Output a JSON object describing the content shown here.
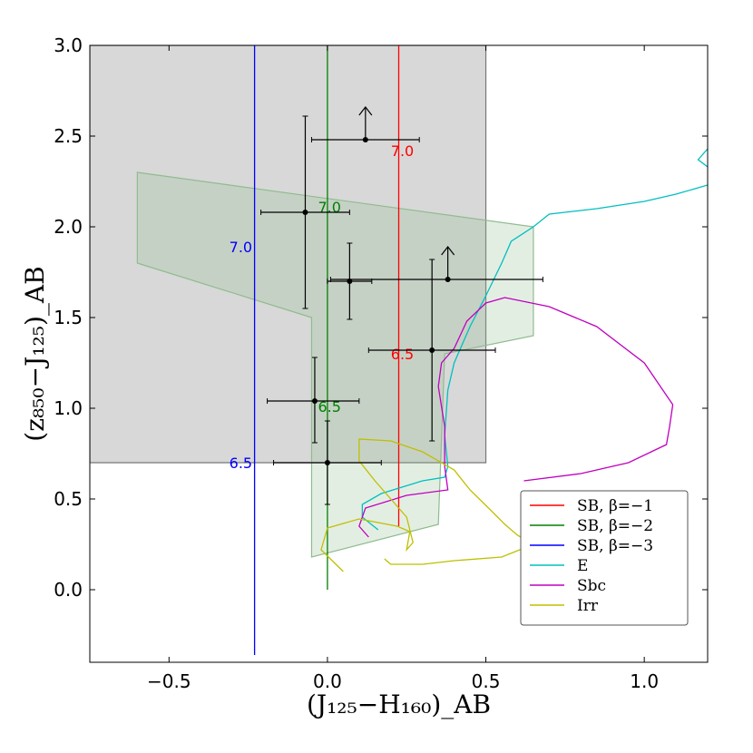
{
  "chart_data": {
    "type": "scatter",
    "xlabel": "(J₁₂₅−H₁₆₀)_AB",
    "ylabel": "(z₈₅₀−J₁₂₅)_AB",
    "xlim": [
      -0.75,
      1.2
    ],
    "ylim": [
      -0.4,
      3.0
    ],
    "x_ticks": [
      -0.5,
      0.0,
      0.5,
      1.0
    ],
    "y_ticks": [
      0.0,
      0.5,
      1.0,
      1.5,
      2.0,
      2.5,
      3.0
    ],
    "x_tick_labels": [
      "−0.5",
      "0.0",
      "0.5",
      "1.0"
    ],
    "y_tick_labels": [
      "0.0",
      "0.5",
      "1.0",
      "1.5",
      "2.0",
      "2.5",
      "3.0"
    ],
    "grid": false,
    "legend_position": "lower-right",
    "regions": [
      {
        "fill": "#a8a8a8",
        "opacity": 0.45,
        "stroke": "#777777",
        "points": [
          [
            -0.75,
            0.7
          ],
          [
            0.5,
            0.7
          ],
          [
            0.5,
            3.0
          ],
          [
            -0.75,
            3.0
          ]
        ]
      },
      {
        "fill": "#8fbc8f",
        "opacity": 0.25,
        "stroke": "#8fbc8f",
        "points": [
          [
            -0.6,
            2.3
          ],
          [
            0.65,
            2.0
          ],
          [
            0.65,
            1.4
          ],
          [
            0.37,
            1.3
          ],
          [
            0.35,
            0.36
          ],
          [
            -0.05,
            0.18
          ],
          [
            -0.05,
            1.5
          ],
          [
            -0.6,
            1.8
          ]
        ]
      }
    ],
    "series": [
      {
        "name": "SB, β=−1",
        "color": "#ff0000",
        "points": [
          [
            0.225,
            0.35
          ],
          [
            0.225,
            3.0
          ]
        ],
        "labels": [
          {
            "text": "7.0",
            "x": 0.2,
            "y": 2.42
          },
          {
            "text": "6.5",
            "x": 0.2,
            "y": 1.3
          }
        ]
      },
      {
        "name": "SB, β=−2",
        "color": "#008000",
        "points": [
          [
            0.0,
            0.0
          ],
          [
            0.0,
            3.0
          ]
        ],
        "labels": [
          {
            "text": "7.0",
            "x": -0.03,
            "y": 2.11
          },
          {
            "text": "6.5",
            "x": -0.03,
            "y": 1.01
          }
        ]
      },
      {
        "name": "SB, β=−3",
        "color": "#0000ff",
        "points": [
          [
            -0.23,
            -0.36
          ],
          [
            -0.23,
            3.0
          ]
        ],
        "labels": [
          {
            "text": "7.0",
            "x": -0.31,
            "y": 1.89
          },
          {
            "text": "6.5",
            "x": -0.31,
            "y": 0.7
          }
        ]
      },
      {
        "name": "E",
        "color": "#00bfbf",
        "points": [
          [
            0.16,
            0.33
          ],
          [
            0.11,
            0.4
          ],
          [
            0.11,
            0.47
          ],
          [
            0.17,
            0.53
          ],
          [
            0.3,
            0.6
          ],
          [
            0.37,
            0.62
          ],
          [
            0.38,
            0.68
          ],
          [
            0.37,
            0.85
          ],
          [
            0.38,
            1.1
          ],
          [
            0.4,
            1.25
          ],
          [
            0.45,
            1.45
          ],
          [
            0.5,
            1.62
          ],
          [
            0.55,
            1.8
          ],
          [
            0.58,
            1.92
          ],
          [
            0.65,
            2.0
          ],
          [
            0.7,
            2.07
          ],
          [
            0.85,
            2.1
          ],
          [
            1.0,
            2.14
          ],
          [
            1.1,
            2.18
          ],
          [
            1.2,
            2.23
          ]
        ]
      },
      {
        "name": "E (segment)",
        "color": "#00bfbf",
        "points": [
          [
            1.2,
            2.33
          ],
          [
            1.17,
            2.37
          ],
          [
            1.2,
            2.43
          ]
        ]
      },
      {
        "name": "Sbc",
        "color": "#bf00bf",
        "points": [
          [
            0.13,
            0.29
          ],
          [
            0.1,
            0.35
          ],
          [
            0.12,
            0.45
          ],
          [
            0.25,
            0.52
          ],
          [
            0.38,
            0.55
          ],
          [
            0.37,
            0.68
          ],
          [
            0.37,
            0.9
          ],
          [
            0.35,
            1.12
          ],
          [
            0.36,
            1.25
          ],
          [
            0.4,
            1.33
          ],
          [
            0.44,
            1.48
          ],
          [
            0.5,
            1.58
          ],
          [
            0.56,
            1.61
          ],
          [
            0.7,
            1.56
          ],
          [
            0.85,
            1.45
          ],
          [
            1.0,
            1.25
          ],
          [
            1.09,
            1.02
          ],
          [
            1.08,
            0.9
          ],
          [
            1.07,
            0.8
          ],
          [
            0.95,
            0.7
          ],
          [
            0.8,
            0.64
          ],
          [
            0.62,
            0.6
          ]
        ]
      },
      {
        "name": "Irr",
        "color": "#bfbf00",
        "points": [
          [
            0.05,
            0.1
          ],
          [
            -0.02,
            0.22
          ],
          [
            0.0,
            0.34
          ],
          [
            0.1,
            0.39
          ],
          [
            0.22,
            0.35
          ],
          [
            0.26,
            0.32
          ],
          [
            0.25,
            0.22
          ],
          [
            0.27,
            0.26
          ],
          [
            0.25,
            0.4
          ],
          [
            0.15,
            0.6
          ],
          [
            0.1,
            0.71
          ],
          [
            0.1,
            0.83
          ],
          [
            0.2,
            0.82
          ],
          [
            0.3,
            0.76
          ],
          [
            0.4,
            0.66
          ],
          [
            0.45,
            0.55
          ],
          [
            0.52,
            0.43
          ],
          [
            0.56,
            0.36
          ],
          [
            0.6,
            0.3
          ],
          [
            0.65,
            0.25
          ],
          [
            0.55,
            0.18
          ],
          [
            0.4,
            0.16
          ],
          [
            0.3,
            0.14
          ],
          [
            0.2,
            0.14
          ],
          [
            0.18,
            0.17
          ]
        ]
      }
    ],
    "points": [
      {
        "x": 0.12,
        "y": 2.48,
        "xerr": [
          0.17,
          0.17
        ],
        "yerr": null,
        "lower_limit": true
      },
      {
        "x": -0.07,
        "y": 2.08,
        "xerr": [
          0.14,
          0.14
        ],
        "yerr": [
          0.53,
          0.53
        ],
        "lower_limit": false
      },
      {
        "x": 0.07,
        "y": 1.7,
        "xerr": [
          0.07,
          0.07
        ],
        "yerr": [
          0.21,
          0.21
        ],
        "lower_limit": false
      },
      {
        "x": 0.38,
        "y": 1.71,
        "xerr": [
          0.37,
          0.3
        ],
        "yerr": null,
        "lower_limit": true
      },
      {
        "x": 0.33,
        "y": 1.32,
        "xerr": [
          0.2,
          0.2
        ],
        "yerr": [
          0.5,
          0.5
        ],
        "lower_limit": false
      },
      {
        "x": -0.04,
        "y": 1.04,
        "xerr": [
          0.15,
          0.14
        ],
        "yerr": [
          0.24,
          0.23
        ],
        "lower_limit": false
      },
      {
        "x": 0.0,
        "y": 0.7,
        "xerr": [
          0.17,
          0.17
        ],
        "yerr": [
          0.23,
          0.23
        ],
        "lower_limit": false
      }
    ],
    "legend": [
      {
        "label": "SB, β=−1",
        "color": "#ff0000"
      },
      {
        "label": "SB, β=−2",
        "color": "#008000"
      },
      {
        "label": "SB, β=−3",
        "color": "#0000ff"
      },
      {
        "label": "E",
        "color": "#00bfbf"
      },
      {
        "label": "Sbc",
        "color": "#bf00bf"
      },
      {
        "label": "Irr",
        "color": "#bfbf00"
      }
    ]
  }
}
